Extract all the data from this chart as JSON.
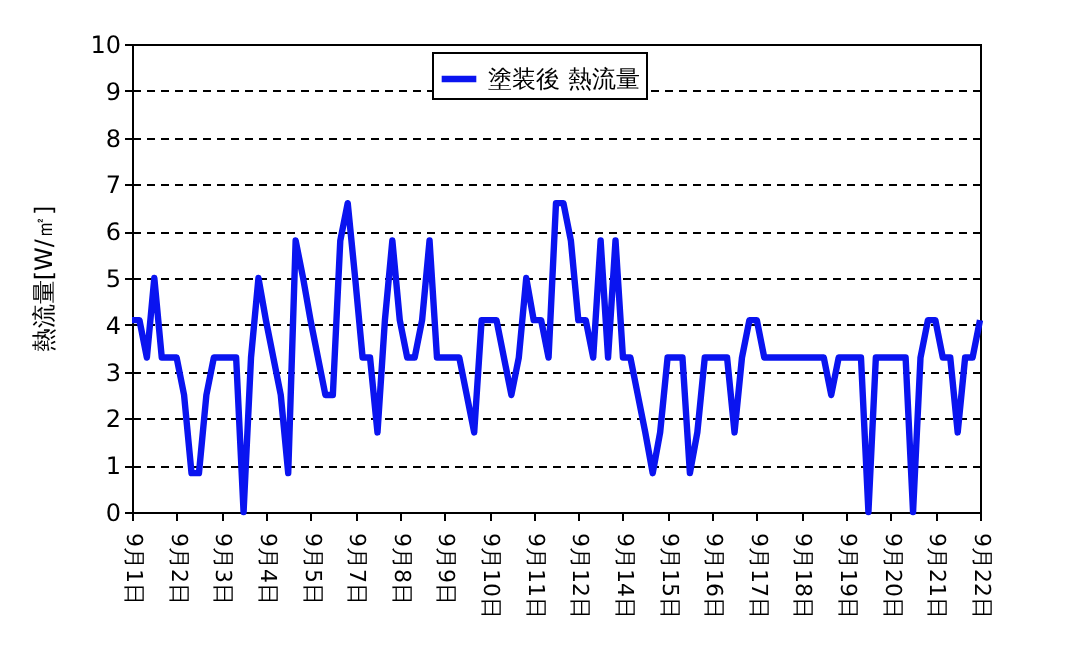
{
  "chart_data": {
    "type": "line",
    "ylabel": "熱流量[W/㎡]",
    "ylim": [
      0,
      10
    ],
    "yticks": [
      0,
      1,
      2,
      3,
      4,
      5,
      6,
      7,
      8,
      9,
      10
    ],
    "categories": [
      "9月1日",
      null,
      null,
      null,
      null,
      null,
      "9月2日",
      null,
      null,
      null,
      null,
      null,
      "9月3日",
      null,
      null,
      null,
      null,
      null,
      "9月4日",
      null,
      null,
      null,
      null,
      null,
      "9月5日",
      null,
      null,
      null,
      null,
      null,
      "9月7日",
      null,
      null,
      null,
      null,
      null,
      "9月8日",
      null,
      null,
      null,
      null,
      null,
      "9月9日",
      null,
      null,
      null,
      null,
      null,
      "9月10日",
      null,
      null,
      null,
      null,
      null,
      "9月11日",
      null,
      null,
      null,
      null,
      null,
      "9月12日",
      null,
      null,
      null,
      null,
      null,
      "9月14日",
      null,
      null,
      null,
      null,
      null,
      "9月15日",
      null,
      null,
      null,
      null,
      null,
      "9月16日",
      null,
      null,
      null,
      null,
      null,
      "9月17日",
      null,
      null,
      null,
      null,
      null,
      "9月18日",
      null,
      null,
      null,
      null,
      null,
      "9月19日",
      null,
      null,
      null,
      null,
      null,
      "9月20日",
      null,
      null,
      null,
      null,
      null,
      "9月21日",
      null,
      null,
      null,
      null,
      null,
      "9月22日"
    ],
    "grid": "y",
    "legend": "top",
    "line_style": "solid",
    "marker": "none",
    "series": [
      {
        "name": "塗装後 熱流量",
        "color": "#0a14f0",
        "values": [
          4.1,
          4.1,
          3.3,
          5.0,
          3.3,
          3.3,
          3.3,
          2.5,
          0.83,
          0.83,
          2.5,
          3.3,
          3.3,
          3.3,
          3.3,
          0,
          3.3,
          5.0,
          4.1,
          3.3,
          2.5,
          0.83,
          5.8,
          5.0,
          4.1,
          3.3,
          2.5,
          2.5,
          5.8,
          6.6,
          5.0,
          3.3,
          3.3,
          1.7,
          4.1,
          5.8,
          4.1,
          3.3,
          3.3,
          4.1,
          5.8,
          3.3,
          3.3,
          3.3,
          3.3,
          2.5,
          1.7,
          4.1,
          4.1,
          4.1,
          3.3,
          2.5,
          3.3,
          5.0,
          4.1,
          4.1,
          3.3,
          6.6,
          6.6,
          5.8,
          4.1,
          4.1,
          3.3,
          5.8,
          3.3,
          5.8,
          3.3,
          3.3,
          2.5,
          1.7,
          0.83,
          1.7,
          3.3,
          3.3,
          3.3,
          0.83,
          1.7,
          3.3,
          3.3,
          3.3,
          3.3,
          1.7,
          3.3,
          4.1,
          4.1,
          3.3,
          3.3,
          3.3,
          3.3,
          3.3,
          3.3,
          3.3,
          3.3,
          3.3,
          2.5,
          3.3,
          3.3,
          3.3,
          3.3,
          0,
          3.3,
          3.3,
          3.3,
          3.3,
          3.3,
          0,
          3.3,
          4.1,
          4.1,
          3.3,
          3.3,
          1.7,
          3.3,
          3.3,
          4.1
        ]
      }
    ]
  }
}
